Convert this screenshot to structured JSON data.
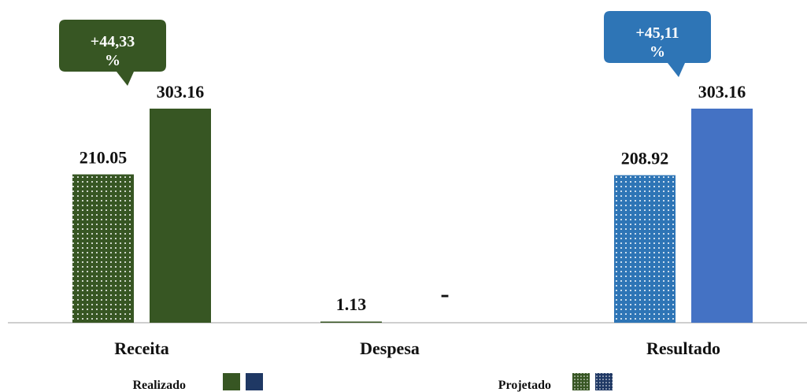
{
  "chart_data": {
    "type": "bar",
    "categories": [
      "Receita",
      "Despesa",
      "Resultado"
    ],
    "series": [
      {
        "name": "Projetado",
        "values": [
          210.05,
          1.13,
          208.92
        ],
        "labels": [
          "210.05",
          "1.13",
          "208.92"
        ]
      },
      {
        "name": "Realizado",
        "values": [
          303.16,
          0,
          303.16
        ],
        "labels": [
          "303.16",
          "-",
          "303.16"
        ]
      }
    ],
    "colors": {
      "receita_realizado": "#375623",
      "resultado_realizado": "#4472C4",
      "receita_projetado": "#375623",
      "resultado_projetado": "#2E75B6",
      "legend_realizado_green": "#375623",
      "legend_realizado_blue": "#1F3864",
      "legend_projetado_green": "#375623",
      "legend_projetado_blue": "#1F3864",
      "axis": "#BFBFBF"
    },
    "callouts": [
      {
        "category": "Receita",
        "line1": "+44,33",
        "line2": "%",
        "color": "#375623"
      },
      {
        "category": "Resultado",
        "line1": "+45,11",
        "line2": "%",
        "color": "#2E75B6"
      }
    ],
    "legend": [
      {
        "label": "Realizado",
        "pattern": "solid"
      },
      {
        "label": "Projetado",
        "pattern": "dotted"
      }
    ],
    "ylim": [
      0,
      303.16
    ],
    "legend_position": "bottom"
  }
}
